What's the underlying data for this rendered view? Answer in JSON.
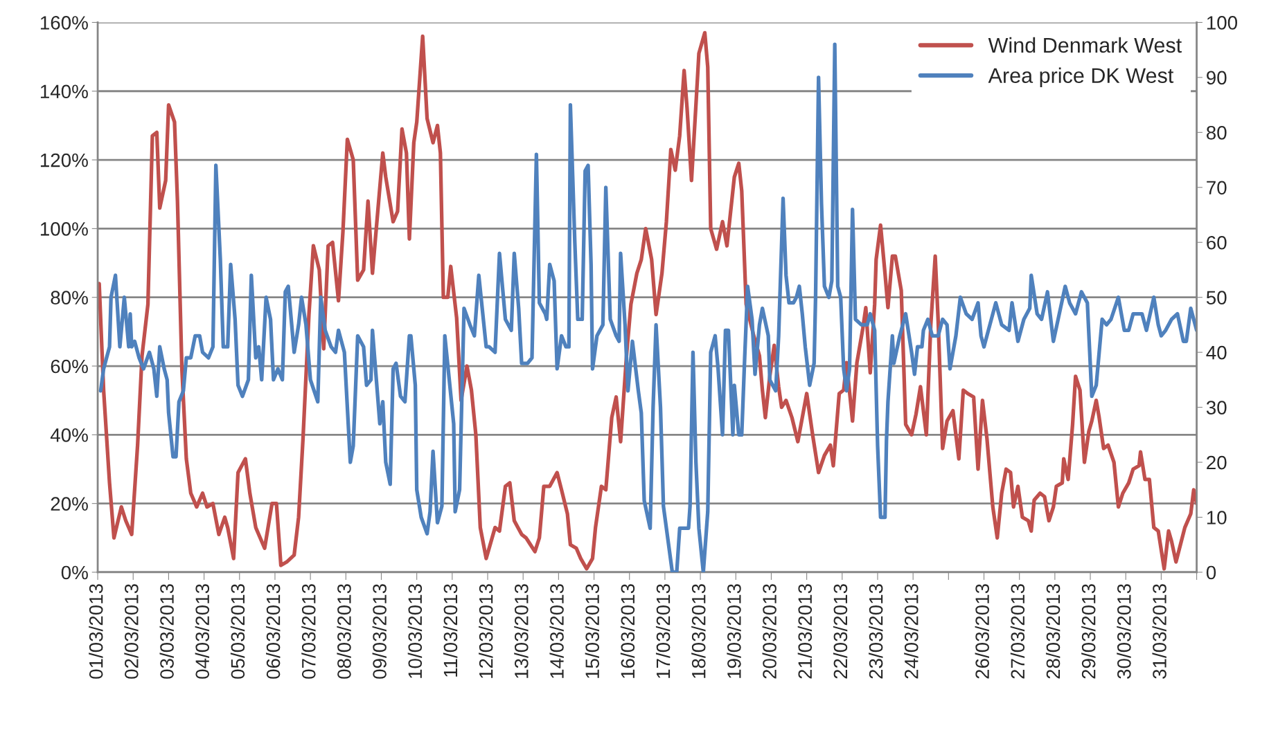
{
  "chart_data": {
    "type": "line",
    "xlim": [
      "2013-03-01",
      "2013-04-01"
    ],
    "xticks": [
      {
        "value": "2013-03-01",
        "label": "01/03/2013"
      },
      {
        "value": "2013-03-02",
        "label": "02/03/2013"
      },
      {
        "value": "2013-03-03",
        "label": "03/03/2013"
      },
      {
        "value": "2013-03-04",
        "label": "04/03/2013"
      },
      {
        "value": "2013-03-05",
        "label": "05/03/2013"
      },
      {
        "value": "2013-03-06",
        "label": "06/03/2013"
      },
      {
        "value": "2013-03-07",
        "label": "07/03/2013"
      },
      {
        "value": "2013-03-08",
        "label": "08/03/2013"
      },
      {
        "value": "2013-03-09",
        "label": "09/03/2013"
      },
      {
        "value": "2013-03-10",
        "label": "10/03/2013"
      },
      {
        "value": "2013-03-11",
        "label": "11/03/2013"
      },
      {
        "value": "2013-03-12",
        "label": "12/03/2013"
      },
      {
        "value": "2013-03-13",
        "label": "13/03/2013"
      },
      {
        "value": "2013-03-14",
        "label": "14/03/2013"
      },
      {
        "value": "2013-03-15",
        "label": "15/03/2013"
      },
      {
        "value": "2013-03-16",
        "label": "16/03/2013"
      },
      {
        "value": "2013-03-17",
        "label": "17/03/2013"
      },
      {
        "value": "2013-03-18",
        "label": "18/03/2013"
      },
      {
        "value": "2013-03-19",
        "label": "19/03/2013"
      },
      {
        "value": "2013-03-20",
        "label": "20/03/2013"
      },
      {
        "value": "2013-03-21",
        "label": "21/03/2013"
      },
      {
        "value": "2013-03-22",
        "label": "22/03/2013"
      },
      {
        "value": "2013-03-23",
        "label": "23/03/2013"
      },
      {
        "value": "2013-03-24",
        "label": "24/03/2013"
      },
      {
        "value": "2013-03-25",
        "label": null
      },
      {
        "value": "2013-03-26",
        "label": "26/03/2013"
      },
      {
        "value": "2013-03-27",
        "label": "27/03/2013"
      },
      {
        "value": "2013-03-28",
        "label": "28/03/2013"
      },
      {
        "value": "2013-03-29",
        "label": "29/03/2013"
      },
      {
        "value": "2013-03-30",
        "label": "30/03/2013"
      },
      {
        "value": "2013-03-31",
        "label": "31/03/2013"
      },
      {
        "value": "2013-04-01",
        "label": null
      }
    ],
    "ylim": [
      0,
      160
    ],
    "yticks": [
      {
        "value": 0,
        "label": "0%"
      },
      {
        "value": 20,
        "label": "20%"
      },
      {
        "value": 40,
        "label": "40%"
      },
      {
        "value": 60,
        "label": "60%"
      },
      {
        "value": 80,
        "label": "80%"
      },
      {
        "value": 100,
        "label": "100%"
      },
      {
        "value": 120,
        "label": "120%"
      },
      {
        "value": 140,
        "label": "140%"
      },
      {
        "value": 160,
        "label": "160%"
      }
    ],
    "y2lim": [
      0,
      100
    ],
    "y2ticks": [
      0,
      10,
      20,
      30,
      40,
      50,
      60,
      70,
      80,
      90,
      100
    ],
    "grid": "y",
    "legend": "top right",
    "line_style": "solid",
    "series": [
      {
        "name": "Wind Denmark West",
        "color": "#c0504d",
        "x": [
          "2013-03-01T01:00",
          "2013-03-01T04:00",
          "2013-03-01T08:00",
          "2013-03-01T11:00",
          "2013-03-01T16:00",
          "2013-03-01T19:00",
          "2013-03-01T23:00",
          "2013-03-02T03:00",
          "2013-03-02T06:00",
          "2013-03-02T10:00",
          "2013-03-02T13:00",
          "2013-03-02T16:00",
          "2013-03-02T18:00",
          "2013-03-02T22:00",
          "2013-03-03T00:00",
          "2013-03-03T04:00",
          "2013-03-03T06:00",
          "2013-03-03T09:00",
          "2013-03-03T12:00",
          "2013-03-03T15:00",
          "2013-03-03T19:00",
          "2013-03-03T23:00",
          "2013-03-04T02:00",
          "2013-03-04T06:00",
          "2013-03-04T10:00",
          "2013-03-04T14:00",
          "2013-03-04T16:00",
          "2013-03-04T20:00",
          "2013-03-04T23:00",
          "2013-03-05T04:00",
          "2013-03-05T07:00",
          "2013-03-05T11:00",
          "2013-03-05T17:00",
          "2013-03-05T22:00",
          "2013-03-06T01:00",
          "2013-03-06T04:00",
          "2013-03-06T08:00",
          "2013-03-06T13:00",
          "2013-03-06T16:00",
          "2013-03-06T19:00",
          "2013-03-06T23:00",
          "2013-03-07T02:00",
          "2013-03-07T06:00",
          "2013-03-07T09:00",
          "2013-03-07T12:00",
          "2013-03-07T15:00",
          "2013-03-07T19:00",
          "2013-03-07T22:00",
          "2013-03-08T01:00",
          "2013-03-08T05:00",
          "2013-03-08T08:00",
          "2013-03-08T12:00",
          "2013-03-08T15:00",
          "2013-03-08T18:00",
          "2013-03-09T01:00",
          "2013-03-09T03:00",
          "2013-03-09T08:00",
          "2013-03-09T11:00",
          "2013-03-09T14:00",
          "2013-03-09T17:00",
          "2013-03-09T19:00",
          "2013-03-09T22:00",
          "2013-03-10T00:00",
          "2013-03-10T04:00",
          "2013-03-10T07:00",
          "2013-03-10T11:00",
          "2013-03-10T14:00",
          "2013-03-10T16:00",
          "2013-03-10T18:00",
          "2013-03-10T21:00",
          "2013-03-10T23:00",
          "2013-03-11T03:00",
          "2013-03-11T06:00",
          "2013-03-11T10:00",
          "2013-03-11T13:00",
          "2013-03-11T16:00",
          "2013-03-11T19:00",
          "2013-03-11T23:00",
          "2013-03-12T01:00",
          "2013-03-12T05:00",
          "2013-03-12T08:00",
          "2013-03-12T12:00",
          "2013-03-12T15:00",
          "2013-03-12T18:00",
          "2013-03-12T23:00",
          "2013-03-13T02:00",
          "2013-03-13T05:00",
          "2013-03-13T08:00",
          "2013-03-13T11:00",
          "2013-03-13T14:00",
          "2013-03-13T18:00",
          "2013-03-13T23:00",
          "2013-03-14T02:00",
          "2013-03-14T06:00",
          "2013-03-14T08:00",
          "2013-03-14T12:00",
          "2013-03-14T15:00",
          "2013-03-14T19:00",
          "2013-03-14T23:00",
          "2013-03-15T01:00",
          "2013-03-15T05:00",
          "2013-03-15T08:00",
          "2013-03-15T12:00",
          "2013-03-15T15:00",
          "2013-03-15T18:00",
          "2013-03-15T22:00",
          "2013-03-16T01:00",
          "2013-03-16T05:00",
          "2013-03-16T08:00",
          "2013-03-16T11:00",
          "2013-03-16T15:00",
          "2013-03-16T18:00",
          "2013-03-16T22:00",
          "2013-03-17T01:00",
          "2013-03-17T04:00",
          "2013-03-17T07:00",
          "2013-03-17T10:00",
          "2013-03-17T13:00",
          "2013-03-17T15:00",
          "2013-03-17T18:00",
          "2013-03-17T21:00",
          "2013-03-17T23:00",
          "2013-03-18T01:00",
          "2013-03-18T03:00",
          "2013-03-18T05:00",
          "2013-03-18T07:00",
          "2013-03-18T11:00",
          "2013-03-18T15:00",
          "2013-03-18T18:00",
          "2013-03-18T23:00",
          "2013-03-19T02:00",
          "2013-03-19T04:00",
          "2013-03-19T07:00",
          "2013-03-19T12:00",
          "2013-03-19T16:00",
          "2013-03-19T18:00",
          "2013-03-19T20:00",
          "2013-03-19T23:00",
          "2013-03-20T02:00",
          "2013-03-20T05:00",
          "2013-03-20T07:00",
          "2013-03-20T10:00",
          "2013-03-20T14:00",
          "2013-03-20T18:00",
          "2013-03-20T21:00",
          "2013-03-21T00:00",
          "2013-03-21T04:00",
          "2013-03-21T08:00",
          "2013-03-21T12:00",
          "2013-03-21T16:00",
          "2013-03-21T18:00",
          "2013-03-21T22:00",
          "2013-03-22T01:00",
          "2013-03-22T03:00",
          "2013-03-22T07:00",
          "2013-03-22T10:00",
          "2013-03-22T14:00",
          "2013-03-22T16:00",
          "2013-03-22T19:00",
          "2013-03-22T22:00",
          "2013-03-22T23:00",
          "2013-03-23T02:00",
          "2013-03-23T05:00",
          "2013-03-23T07:00",
          "2013-03-23T10:00",
          "2013-03-23T12:00",
          "2013-03-23T16:00",
          "2013-03-23T19:00",
          "2013-03-23T23:00",
          "2013-03-24T02:00",
          "2013-03-24T05:00",
          "2013-03-24T09:00",
          "2013-03-24T12:00",
          "2013-03-24T15:00",
          "2013-03-24T17:00",
          "2013-03-24T20:00",
          "2013-03-24T23:00",
          "2013-03-25T03:00",
          "2013-03-25T07:00",
          "2013-03-25T10:00",
          "2013-03-25T13:00",
          "2013-03-25T17:00",
          "2013-03-25T20:00",
          "2013-03-25T23:00",
          "2013-03-26T02:00",
          "2013-03-26T06:00",
          "2013-03-26T09:00",
          "2013-03-26T12:00",
          "2013-03-26T15:00",
          "2013-03-26T18:00",
          "2013-03-26T20:00",
          "2013-03-26T23:00",
          "2013-03-27T02:00",
          "2013-03-27T06:00",
          "2013-03-27T08:00",
          "2013-03-27T10:00",
          "2013-03-27T14:00",
          "2013-03-27T17:00",
          "2013-03-27T20:00",
          "2013-03-27T23:00",
          "2013-03-28T01:00",
          "2013-03-28T05:00",
          "2013-03-28T06:00",
          "2013-03-28T09:00",
          "2013-03-28T12:00",
          "2013-03-28T14:00",
          "2013-03-28T17:00",
          "2013-03-28T20:00",
          "2013-03-28T23:00",
          "2013-03-29T01:00",
          "2013-03-29T04:00",
          "2013-03-29T06:00",
          "2013-03-29T09:00",
          "2013-03-29T12:00",
          "2013-03-29T16:00",
          "2013-03-29T19:00",
          "2013-03-29T22:00",
          "2013-03-30T02:00",
          "2013-03-30T05:00",
          "2013-03-30T09:00",
          "2013-03-30T10:00",
          "2013-03-30T13:00",
          "2013-03-30T16:00",
          "2013-03-30T19:00",
          "2013-03-30T22:00",
          "2013-03-31T02:00",
          "2013-03-31T05:00",
          "2013-03-31T07:00",
          "2013-03-31T10:00",
          "2013-03-31T13:00",
          "2013-03-31T16:00",
          "2013-03-31T20:00",
          "2013-03-31T22:00",
          "2013-04-01T00:00"
        ],
        "values": [
          84,
          53,
          26,
          10,
          19,
          15,
          11,
          37,
          63,
          78,
          127,
          128,
          106,
          114,
          136,
          131,
          108,
          59,
          33,
          23,
          19,
          23,
          19,
          20,
          11,
          16,
          13,
          4,
          29,
          33,
          23,
          13,
          7,
          20,
          20,
          2,
          3,
          5,
          16,
          39,
          75,
          95,
          88,
          65,
          95,
          96,
          79,
          99,
          126,
          120,
          85,
          88,
          108,
          87,
          122,
          115,
          102,
          105,
          129,
          122,
          97,
          125,
          131,
          156,
          132,
          125,
          130,
          122,
          80,
          80,
          89,
          74,
          50,
          60,
          53,
          40,
          13,
          4,
          7,
          13,
          12,
          25,
          26,
          15,
          11,
          10,
          8,
          6,
          10,
          25,
          25,
          29,
          24,
          17,
          8,
          7,
          4,
          1,
          4,
          13,
          25,
          24,
          45,
          51,
          38,
          63,
          78,
          87,
          91,
          100,
          91,
          75,
          87,
          102,
          123,
          117,
          127,
          146,
          135,
          114,
          136,
          151,
          154,
          157,
          147,
          100,
          94,
          102,
          95,
          115,
          119,
          111,
          78,
          69,
          63,
          53,
          45,
          57,
          66,
          54,
          48,
          50,
          45,
          38,
          45,
          52,
          40,
          29,
          34,
          37,
          31,
          52,
          53,
          61,
          44,
          61,
          71,
          77,
          58,
          78,
          91,
          101,
          87,
          77,
          92,
          92,
          82,
          43,
          40,
          46,
          54,
          40,
          72,
          92,
          73,
          36,
          44,
          47,
          33,
          53,
          52,
          51,
          30,
          50,
          39,
          19,
          10,
          23,
          30,
          29,
          19,
          25,
          16,
          15,
          12,
          21,
          23,
          22,
          15,
          19,
          25,
          26,
          33,
          27,
          43,
          57,
          53,
          32,
          41,
          44,
          50,
          45,
          36,
          37,
          32,
          19,
          23,
          26,
          30,
          31,
          35,
          27,
          27,
          13,
          12,
          1,
          12,
          9,
          3,
          8,
          13,
          17,
          24,
          20
        ]
      },
      {
        "name": "Area price DK West",
        "color": "#4f81bd",
        "axis": "y2",
        "x": [
          "2013-03-01T02:00",
          "2013-03-01T04:00",
          "2013-03-01T08:00",
          "2013-03-01T09:00",
          "2013-03-01T12:00",
          "2013-03-01T15:00",
          "2013-03-01T18:00",
          "2013-03-01T21:00",
          "2013-03-01T22:00",
          "2013-03-01T23:00",
          "2013-03-02T01:00",
          "2013-03-02T04:00",
          "2013-03-02T07:00",
          "2013-03-02T11:00",
          "2013-03-02T14:00",
          "2013-03-02T16:00",
          "2013-03-02T18:00",
          "2013-03-02T21:00",
          "2013-03-02T23:00",
          "2013-03-03T00:00",
          "2013-03-03T03:00",
          "2013-03-03T05:00",
          "2013-03-03T07:00",
          "2013-03-03T10:00",
          "2013-03-03T12:00",
          "2013-03-03T15:00",
          "2013-03-03T18:00",
          "2013-03-03T21:00",
          "2013-03-03T23:00",
          "2013-03-04T03:00",
          "2013-03-04T06:00",
          "2013-03-04T08:00",
          "2013-03-04T11:00",
          "2013-03-04T13:00",
          "2013-03-04T16:00",
          "2013-03-04T18:00",
          "2013-03-04T21:00",
          "2013-03-04T23:00",
          "2013-03-05T02:00",
          "2013-03-05T06:00",
          "2013-03-05T08:00",
          "2013-03-05T11:00",
          "2013-03-05T13:00",
          "2013-03-05T15:00",
          "2013-03-05T18:00",
          "2013-03-05T21:00",
          "2013-03-05T23:00",
          "2013-03-06T02:00",
          "2013-03-06T05:00",
          "2013-03-06T07:00",
          "2013-03-06T09:00",
          "2013-03-06T13:00",
          "2013-03-06T16:00",
          "2013-03-06T18:00",
          "2013-03-06T21:00",
          "2013-03-07T00:00",
          "2013-03-07T05:00",
          "2013-03-07T07:00",
          "2013-03-07T10:00",
          "2013-03-07T14:00",
          "2013-03-07T17:00",
          "2013-03-07T19:00",
          "2013-03-07T23:00",
          "2013-03-08T03:00",
          "2013-03-08T05:00",
          "2013-03-08T08:00",
          "2013-03-08T12:00",
          "2013-03-08T14:00",
          "2013-03-08T17:00",
          "2013-03-08T18:00",
          "2013-03-08T23:00",
          "2013-03-09T01:00",
          "2013-03-09T03:00",
          "2013-03-09T06:00",
          "2013-03-09T08:00",
          "2013-03-09T10:00",
          "2013-03-09T13:00",
          "2013-03-09T16:00",
          "2013-03-09T19:00",
          "2013-03-09T20:00",
          "2013-03-09T23:00",
          "2013-03-10T00:00",
          "2013-03-10T03:00",
          "2013-03-10T07:00",
          "2013-03-10T09:00",
          "2013-03-10T11:00",
          "2013-03-10T14:00",
          "2013-03-10T17:00",
          "2013-03-10T19:00",
          "2013-03-10T22:00",
          "2013-03-11T01:00",
          "2013-03-11T02:00",
          "2013-03-11T05:00",
          "2013-03-11T07:00",
          "2013-03-11T08:00",
          "2013-03-11T12:00",
          "2013-03-11T15:00",
          "2013-03-11T18:00",
          "2013-03-11T23:00",
          "2013-03-12T01:00",
          "2013-03-12T05:00",
          "2013-03-12T08:00",
          "2013-03-12T12:00",
          "2013-03-12T16:00",
          "2013-03-12T18:00",
          "2013-03-12T21:00",
          "2013-03-12T23:00",
          "2013-03-13T03:00",
          "2013-03-13T06:00",
          "2013-03-13T09:00",
          "2013-03-13T11:00",
          "2013-03-13T15:00",
          "2013-03-13T16:00",
          "2013-03-13T18:00",
          "2013-03-13T21:00",
          "2013-03-13T23:00",
          "2013-03-14T02:00",
          "2013-03-14T05:00",
          "2013-03-14T07:00",
          "2013-03-14T08:00",
          "2013-03-14T11:00",
          "2013-03-14T13:00",
          "2013-03-14T16:00",
          "2013-03-14T18:00",
          "2013-03-14T20:00",
          "2013-03-14T22:00",
          "2013-03-14T23:00",
          "2013-03-15T02:00",
          "2013-03-15T06:00",
          "2013-03-15T08:00",
          "2013-03-15T11:00",
          "2013-03-15T15:00",
          "2013-03-15T17:00",
          "2013-03-15T18:00",
          "2013-03-15T21:00",
          "2013-03-15T23:00",
          "2013-03-16T02:00",
          "2013-03-16T06:00",
          "2013-03-16T08:00",
          "2013-03-16T10:00",
          "2013-03-16T14:00",
          "2013-03-16T16:00",
          "2013-03-16T18:00",
          "2013-03-16T21:00",
          "2013-03-16T23:00",
          "2013-03-17T03:00",
          "2013-03-17T05:00",
          "2013-03-17T08:00",
          "2013-03-17T10:00",
          "2013-03-17T16:00",
          "2013-03-17T17:00",
          "2013-03-17T19:00",
          "2013-03-17T21:00",
          "2013-03-17T23:00",
          "2013-03-18T02:00",
          "2013-03-18T05:00",
          "2013-03-18T07:00",
          "2013-03-18T10:00",
          "2013-03-18T12:00",
          "2013-03-18T15:00",
          "2013-03-18T17:00",
          "2013-03-18T19:00",
          "2013-03-18T22:00",
          "2013-03-18T23:00",
          "2013-03-19T02:00",
          "2013-03-19T04:00",
          "2013-03-19T06:00",
          "2013-03-19T08:00",
          "2013-03-19T11:00",
          "2013-03-19T13:00",
          "2013-03-19T16:00",
          "2013-03-19T18:00",
          "2013-03-19T22:00",
          "2013-03-19T23:00",
          "2013-03-20T03:00",
          "2013-03-20T05:00",
          "2013-03-20T08:00",
          "2013-03-20T10:00",
          "2013-03-20T12:00",
          "2013-03-20T15:00",
          "2013-03-20T17:00",
          "2013-03-20T19:00",
          "2013-03-20T21:00",
          "2013-03-20T23:00",
          "2013-03-21T02:00",
          "2013-03-21T05:00",
          "2013-03-21T06:00",
          "2013-03-21T08:00",
          "2013-03-21T10:00",
          "2013-03-21T12:00",
          "2013-03-21T15:00",
          "2013-03-21T17:00",
          "2013-03-21T19:00",
          "2013-03-21T21:00",
          "2013-03-21T23:00",
          "2013-03-22T01:00",
          "2013-03-22T03:00",
          "2013-03-22T05:00",
          "2013-03-22T07:00",
          "2013-03-22T09:00",
          "2013-03-22T13:00",
          "2013-03-22T17:00",
          "2013-03-22T19:00",
          "2013-03-22T22:00",
          "2013-03-23T00:00",
          "2013-03-23T02:00",
          "2013-03-23T05:00",
          "2013-03-23T06:00",
          "2013-03-23T07:00",
          "2013-03-23T10:00",
          "2013-03-23T11:00",
          "2013-03-23T15:00",
          "2013-03-23T19:00",
          "2013-03-23T23:00",
          "2013-03-24T01:00",
          "2013-03-24T03:00",
          "2013-03-24T06:00",
          "2013-03-24T07:00",
          "2013-03-24T10:00",
          "2013-03-24T13:00",
          "2013-03-24T17:00",
          "2013-03-24T20:00",
          "2013-03-24T23:00",
          "2013-03-25T01:00",
          "2013-03-25T05:00",
          "2013-03-25T08:00",
          "2013-03-25T12:00",
          "2013-03-25T16:00",
          "2013-03-25T20:00",
          "2013-03-25T22:00",
          "2013-03-26T00:00",
          "2013-03-26T04:00",
          "2013-03-26T08:00",
          "2013-03-26T12:00",
          "2013-03-26T17:00",
          "2013-03-26T19:00",
          "2013-03-26T23:00",
          "2013-03-27T03:00",
          "2013-03-27T07:00",
          "2013-03-27T08:00",
          "2013-03-27T12:00",
          "2013-03-27T15:00",
          "2013-03-27T19:00",
          "2013-03-27T23:00",
          "2013-03-28T03:00",
          "2013-03-28T07:00",
          "2013-03-28T10:00",
          "2013-03-28T14:00",
          "2013-03-28T18:00",
          "2013-03-28T22:00",
          "2013-03-29T01:00",
          "2013-03-29T04:00",
          "2013-03-29T08:00",
          "2013-03-29T11:00",
          "2013-03-29T14:00",
          "2013-03-29T19:00",
          "2013-03-29T23:00",
          "2013-03-30T02:00",
          "2013-03-30T05:00",
          "2013-03-30T11:00",
          "2013-03-30T14:00",
          "2013-03-30T19:00",
          "2013-03-30T22:00",
          "2013-03-31T00:00",
          "2013-03-31T03:00",
          "2013-03-31T07:00",
          "2013-03-31T11:00",
          "2013-03-31T15:00",
          "2013-03-31T17:00",
          "2013-03-31T20:00",
          "2013-04-01T00:00"
        ],
        "values": [
          33,
          37,
          41,
          50,
          54,
          41,
          50,
          41,
          47,
          41,
          42,
          39,
          37,
          40,
          37,
          32,
          41,
          37,
          35,
          29,
          21,
          21,
          31,
          33,
          39,
          39,
          43,
          43,
          40,
          39,
          41,
          74,
          57,
          41,
          41,
          56,
          46,
          34,
          32,
          35,
          54,
          39,
          41,
          35,
          50,
          46,
          35,
          37,
          35,
          51,
          52,
          40,
          45,
          50,
          45,
          35,
          31,
          50,
          44,
          41,
          40,
          44,
          40,
          20,
          23,
          43,
          41,
          34,
          35,
          44,
          27,
          31,
          20,
          16,
          37,
          38,
          32,
          31,
          43,
          43,
          34,
          15,
          10,
          7,
          11,
          22,
          9,
          12,
          43,
          35,
          27,
          11,
          15,
          37,
          48,
          45,
          43,
          54,
          41,
          41,
          40,
          58,
          46,
          44,
          58,
          48,
          38,
          38,
          39,
          76,
          49,
          47,
          46,
          56,
          53,
          37,
          43,
          41,
          41,
          85,
          60,
          46,
          46,
          73,
          74,
          56,
          37,
          43,
          45,
          70,
          46,
          43,
          42,
          58,
          45,
          33,
          42,
          33,
          29,
          13,
          8,
          30,
          45,
          30,
          12,
          4,
          0,
          0,
          8,
          8,
          12,
          40,
          20,
          8,
          0,
          11,
          40,
          43,
          37,
          25,
          44,
          44,
          25,
          34,
          25,
          25,
          39,
          52,
          46,
          36,
          45,
          48,
          43,
          35,
          33,
          43,
          68,
          54,
          49,
          49,
          50,
          52,
          47,
          41,
          34,
          38,
          50,
          90,
          67,
          52,
          50,
          53,
          96,
          52,
          50,
          37,
          33,
          37,
          66,
          46,
          45,
          45,
          47,
          44,
          23,
          10,
          10,
          24,
          31,
          43,
          38,
          43,
          47,
          40,
          36,
          41,
          41,
          44,
          46,
          43,
          43,
          46,
          45,
          37,
          43,
          50,
          47,
          46,
          49,
          43,
          41,
          45,
          49,
          45,
          44,
          49,
          42,
          46,
          48,
          54,
          47,
          46,
          51,
          42,
          47,
          52,
          49,
          47,
          51,
          49,
          32,
          34,
          46,
          45,
          46,
          50,
          44,
          44,
          47,
          47,
          44,
          50,
          45,
          43,
          44,
          46,
          47,
          42,
          42,
          48,
          44
        ]
      }
    ]
  }
}
